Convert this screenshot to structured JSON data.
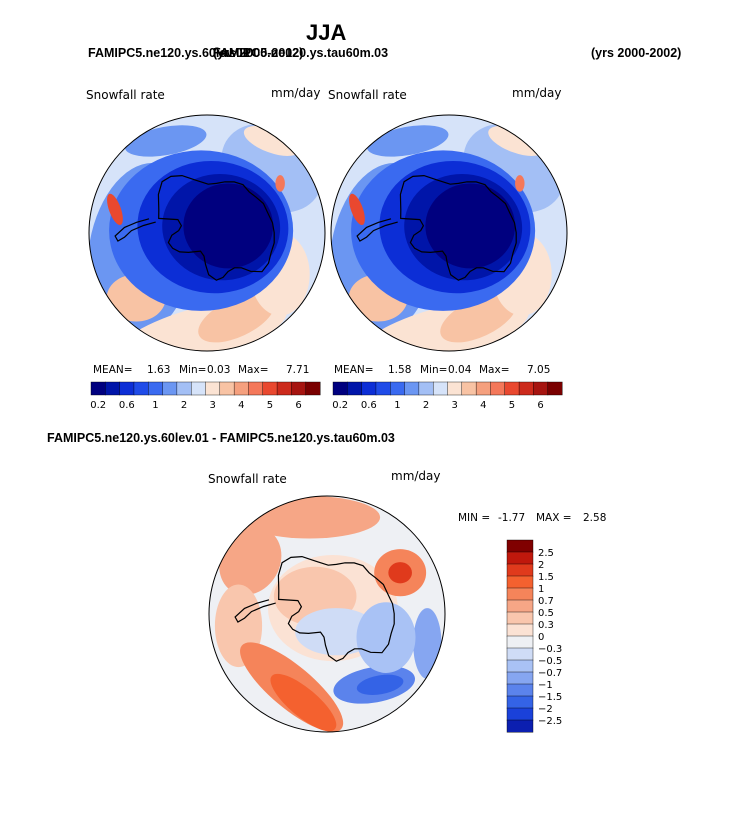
{
  "page": {
    "title": "JJA",
    "case_a": "FAMIPC5.ne120.ys.60lev.01",
    "case_a_years": "(yrs 2000-2002)",
    "case_b": "FAMIPC5.ne120.ys.tau60m.03",
    "case_b_years": "(yrs 2000-2002)",
    "diff_title": "FAMIPC5.ne120.ys.60lev.01 - FAMIPC5.ne120.ys.tau60m.03"
  },
  "chart_data": [
    {
      "type": "heatmap",
      "projection": "south-polar-stereographic",
      "title": "Snowfall rate",
      "units": "mm/day",
      "stats": {
        "mean_label": "MEAN=",
        "mean": "1.63",
        "min_label": "Min=",
        "min": "0.03",
        "max_label": "Max=",
        "max": "7.71"
      },
      "colorbar": {
        "levels": [
          0.2,
          0.4,
          0.6,
          0.8,
          1,
          1.5,
          2,
          2.5,
          3,
          3.5,
          4,
          4.5,
          5,
          5.5,
          6,
          6.5
        ],
        "tick_labels": [
          "0.2",
          "0.6",
          "1",
          "2",
          "3",
          "4",
          "5",
          "6"
        ],
        "colors": [
          "#00007f",
          "#0015a9",
          "#0c2ed6",
          "#1f4be8",
          "#3a6af0",
          "#6b96f2",
          "#a3bff5",
          "#d6e3f9",
          "#fbe3d3",
          "#f8c3a4",
          "#f5a07e",
          "#f4785a",
          "#e9482f",
          "#cc2a1c",
          "#a61410",
          "#7a0000"
        ]
      }
    },
    {
      "type": "heatmap",
      "projection": "south-polar-stereographic",
      "title": "Snowfall rate",
      "units": "mm/day",
      "stats": {
        "mean_label": "MEAN=",
        "mean": "1.58",
        "min_label": "Min=",
        "min": "0.04",
        "max_label": "Max=",
        "max": "7.05"
      },
      "colorbar": {
        "levels": [
          0.2,
          0.4,
          0.6,
          0.8,
          1,
          1.5,
          2,
          2.5,
          3,
          3.5,
          4,
          4.5,
          5,
          5.5,
          6,
          6.5
        ],
        "tick_labels": [
          "0.2",
          "0.6",
          "1",
          "2",
          "3",
          "4",
          "5",
          "6"
        ],
        "colors": [
          "#00007f",
          "#0015a9",
          "#0c2ed6",
          "#1f4be8",
          "#3a6af0",
          "#6b96f2",
          "#a3bff5",
          "#d6e3f9",
          "#fbe3d3",
          "#f8c3a4",
          "#f5a07e",
          "#f4785a",
          "#e9482f",
          "#cc2a1c",
          "#a61410",
          "#7a0000"
        ]
      }
    },
    {
      "type": "heatmap",
      "projection": "south-polar-stereographic",
      "title": "Snowfall rate",
      "units": "mm/day",
      "stats": {
        "min_label": "MIN =",
        "min": "-1.77",
        "max_label": "MAX =",
        "max": "2.58"
      },
      "colorbar": {
        "tick_labels": [
          "2.5",
          "2",
          "1.5",
          "1",
          "0.7",
          "0.5",
          "0.3",
          "0",
          "−0.3",
          "−0.5",
          "−0.7",
          "−1",
          "−1.5",
          "−2",
          "−2.5"
        ],
        "colors": [
          "#800000",
          "#c0180c",
          "#e03a1c",
          "#f4612f",
          "#f5845a",
          "#f6a686",
          "#f9c6ad",
          "#fbe2d4",
          "#eef0f4",
          "#cfdcf6",
          "#a9c2f5",
          "#86a6f1",
          "#5b83ec",
          "#3463e6",
          "#1a41da",
          "#0b1fb0"
        ]
      }
    }
  ]
}
